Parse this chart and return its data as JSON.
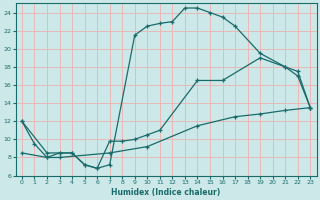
{
  "title": "",
  "xlabel": "Humidex (Indice chaleur)",
  "bg_color": "#cce8e8",
  "grid_color": "#e8b8b8",
  "line_color": "#1a6b6b",
  "xlim": [
    -0.5,
    23.5
  ],
  "ylim": [
    6,
    25
  ],
  "yticks": [
    6,
    8,
    10,
    12,
    14,
    16,
    18,
    20,
    22,
    24
  ],
  "xticks": [
    0,
    1,
    2,
    3,
    4,
    5,
    6,
    7,
    8,
    9,
    10,
    11,
    12,
    13,
    14,
    15,
    16,
    17,
    18,
    19,
    20,
    21,
    22,
    23
  ],
  "curve1_x": [
    0,
    1,
    2,
    3,
    4,
    5,
    6,
    7,
    9,
    10,
    11,
    12,
    13,
    14,
    15,
    16,
    17,
    19,
    21,
    22,
    23
  ],
  "curve1_y": [
    12,
    9.5,
    8,
    8.5,
    8.5,
    7.2,
    6.8,
    7.2,
    21.5,
    22.5,
    22.8,
    23.0,
    24.5,
    24.5,
    24.0,
    23.5,
    22.5,
    19.5,
    18.0,
    17.0,
    13.5
  ],
  "curve2_x": [
    0,
    2,
    3,
    4,
    5,
    6,
    7,
    8,
    9,
    10,
    11,
    14,
    16,
    19,
    21,
    22,
    23
  ],
  "curve2_y": [
    12,
    8.5,
    8.5,
    8.5,
    7.2,
    6.8,
    9.8,
    9.8,
    10.0,
    10.5,
    11.0,
    16.5,
    16.5,
    19.0,
    18.0,
    17.5,
    13.5
  ],
  "curve3_x": [
    0,
    2,
    3,
    7,
    10,
    14,
    17,
    19,
    21,
    23
  ],
  "curve3_y": [
    8.5,
    8.0,
    8.0,
    8.5,
    9.2,
    11.5,
    12.5,
    12.8,
    13.2,
    13.5
  ]
}
